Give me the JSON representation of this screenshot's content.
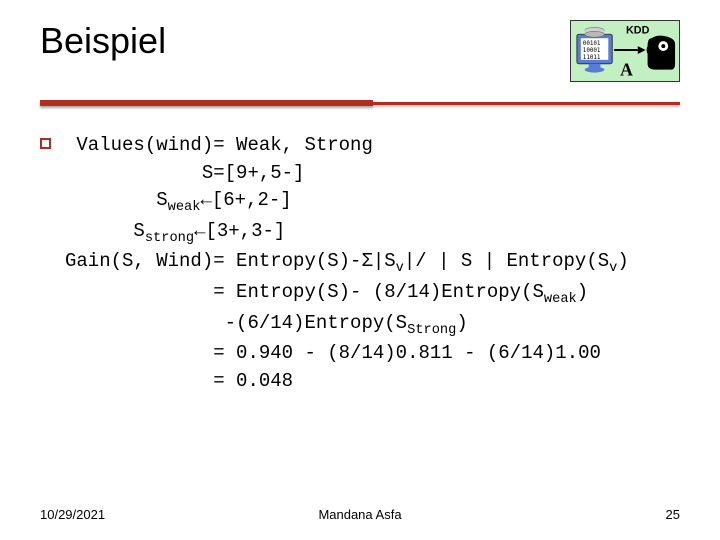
{
  "title": "Beispiel",
  "kdd": {
    "label": "KDD",
    "binary": [
      "00101",
      "10001",
      "11011"
    ],
    "bg_color": "#c3f0c3",
    "monitor_color": "#5a7cd6",
    "screen_color": "#ffffff",
    "head_color": "#000000"
  },
  "underline_color": "#b32d1e",
  "bullet_border_color": "#b32d1e",
  "content": {
    "line1_left": "Values(wind)=",
    "line1_right": " Weak, Strong",
    "line2_left": "S=",
    "line2_right": "[9+,5-]",
    "line3_left_a": "S",
    "line3_left_sub": "weak",
    "line3_arrow": "←",
    "line3_right": "[6+,2-]",
    "line4_left_a": "S",
    "line4_left_sub": "strong",
    "line4_arrow": "←",
    "line4_right": "[3+,3-]",
    "line5_left": "Gain(S, Wind)=",
    "line5_right_a": " Entropy(S)-Σ|S",
    "line5_right_sub1": "v",
    "line5_right_b": "|/ | S | Entropy(S",
    "line5_right_sub2": "v",
    "line5_right_c": ")",
    "line6_left": " =",
    "line6_right_a": " Entropy(S)- (8/14)Entropy(S",
    "line6_right_sub": "weak",
    "line6_right_b": ")",
    "line7_right_a": "-(6/14)Entropy(S",
    "line7_right_sub": "Strong",
    "line7_right_b": ")",
    "line8_left": " =",
    "line8_right": " 0.940 - (8/14)0.811 - (6/14)1.00",
    "line9_left": " =",
    "line9_right": " 0.048"
  },
  "footer": {
    "date": "10/29/2021",
    "author": "Mandana Asfa",
    "page": "25"
  },
  "label_col_width_ch": 14
}
